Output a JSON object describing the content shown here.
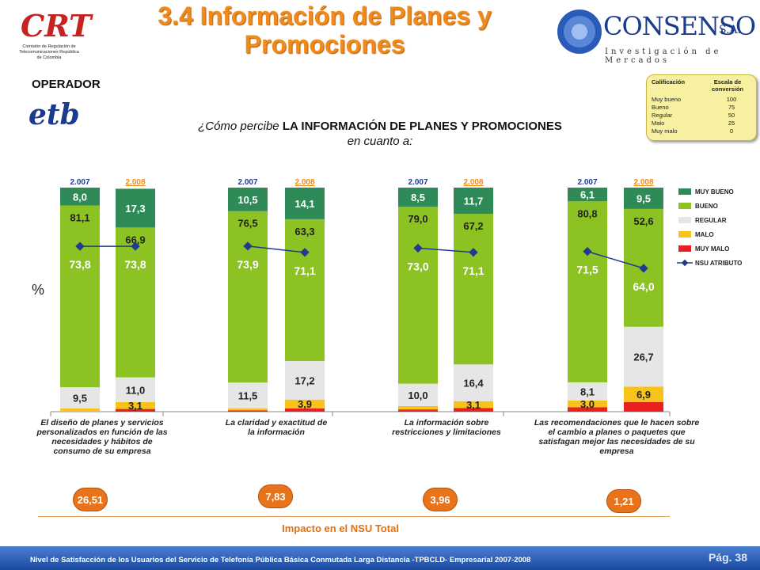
{
  "page": {
    "title": "3.4 Información de Planes y Promociones",
    "operator_label": "OPERADOR",
    "operator_name": "etb",
    "question_prefix": "¿Cómo percibe ",
    "question_bold": "LA INFORMACIÓN DE PLANES Y PROMOCIONES",
    "question_suffix": " en cuanto a:",
    "percent_label": "%",
    "impact_label": "Impacto en el NSU Total",
    "footer_text": "Nivel de Satisfacción de los Usuarios del Servicio de Telefonía Pública Básica Conmutada Larga Distancia -TPBCLD- Empresarial 2007-2008",
    "page_number": "Pág. 38"
  },
  "logos": {
    "crt_text": "CRT",
    "crt_sub": "Comisión de Regulación de Telecomunicaciones República de Colombia",
    "consenso_name": "CONSENSO",
    "consenso_sa": "S.A.",
    "consenso_tagline": "Investigación de Mercados"
  },
  "scale": {
    "header_left": "Calificación",
    "header_right": "Escala de conversión",
    "rows": [
      {
        "label": "Muy bueno",
        "value": "100"
      },
      {
        "label": "Bueno",
        "value": "75"
      },
      {
        "label": "Regular",
        "value": "50"
      },
      {
        "label": "Malo",
        "value": "25"
      },
      {
        "label": "Muy malo",
        "value": "0"
      }
    ]
  },
  "colors": {
    "muy_bueno": "#2e8b57",
    "bueno": "#8cc322",
    "regular": "#e6e6e6",
    "malo": "#f7c31a",
    "muy_malo": "#e8201e",
    "nsu": "#1f3a93",
    "accent": "#f08a1c"
  },
  "chart_data": {
    "type": "bar",
    "stacked": true,
    "ylim": [
      0,
      100
    ],
    "year_labels": [
      "2.007",
      "2.008"
    ],
    "legend": [
      "MUY BUENO",
      "BUENO",
      "REGULAR",
      "MALO",
      "MUY MALO",
      "NSU ATRIBUTO"
    ],
    "legend_position": "right",
    "groups": [
      {
        "category": "El diseño de planes y servicios personalizados en función de las necesidades y hábitos de consumo de su empresa",
        "impact": "26,51",
        "bars": [
          {
            "year": "2.007",
            "muy_malo": 0,
            "malo": 1.4,
            "regular": 9.5,
            "bueno": 81.1,
            "muy_bueno": 8.0,
            "nsu": 73.8,
            "labels": {
              "muy_bueno": "8,0",
              "bueno": "81,1",
              "regular": "9,5",
              "malo": "",
              "muy_malo": "",
              "nsu": "73,8"
            }
          },
          {
            "year": "2.008",
            "muy_malo": 1.2,
            "malo": 3.1,
            "regular": 11.0,
            "bueno": 66.9,
            "muy_bueno": 17.3,
            "nsu": 73.8,
            "labels": {
              "muy_bueno": "17,3",
              "bueno": "66,9",
              "regular": "11,0",
              "malo": "3,1",
              "muy_malo": "",
              "nsu": "73,8"
            }
          }
        ]
      },
      {
        "category": "La claridad y exactitud de la información",
        "impact": "7,83",
        "bars": [
          {
            "year": "2.007",
            "muy_malo": 0.6,
            "malo": 0.9,
            "regular": 11.5,
            "bueno": 76.5,
            "muy_bueno": 10.5,
            "nsu": 73.9,
            "labels": {
              "muy_bueno": "10,5",
              "bueno": "76,5",
              "regular": "11,5",
              "malo": "",
              "muy_malo": "",
              "nsu": "73,9"
            }
          },
          {
            "year": "2.008",
            "muy_malo": 1.5,
            "malo": 3.9,
            "regular": 17.2,
            "bueno": 63.3,
            "muy_bueno": 14.1,
            "nsu": 71.1,
            "labels": {
              "muy_bueno": "14,1",
              "bueno": "63,3",
              "regular": "17,2",
              "malo": "3,9",
              "muy_malo": "",
              "nsu": "71,1"
            }
          }
        ]
      },
      {
        "category": "La información sobre restricciones y limitaciones",
        "impact": "3,96",
        "bars": [
          {
            "year": "2.007",
            "muy_malo": 1.0,
            "malo": 1.5,
            "regular": 10.0,
            "bueno": 79.0,
            "muy_bueno": 8.5,
            "nsu": 73.0,
            "labels": {
              "muy_bueno": "8,5",
              "bueno": "79,0",
              "regular": "10,0",
              "malo": "",
              "muy_malo": "",
              "nsu": "73,0"
            }
          },
          {
            "year": "2.008",
            "muy_malo": 1.6,
            "malo": 3.1,
            "regular": 16.4,
            "bueno": 67.2,
            "muy_bueno": 11.7,
            "nsu": 71.1,
            "labels": {
              "muy_bueno": "11,7",
              "bueno": "67,2",
              "regular": "16,4",
              "malo": "3,1",
              "muy_malo": "",
              "nsu": "71,1"
            }
          }
        ]
      },
      {
        "category": "Las recomendaciones que le hacen sobre el cambio a planes o paquetes que satisfagan mejor las necesidades de su empresa",
        "impact": "1,21",
        "bars": [
          {
            "year": "2.007",
            "muy_malo": 2.0,
            "malo": 3.0,
            "regular": 8.1,
            "bueno": 80.8,
            "muy_bueno": 6.1,
            "nsu": 71.5,
            "labels": {
              "muy_bueno": "6,1",
              "bueno": "80,8",
              "regular": "8,1",
              "malo": "3,0",
              "muy_malo": "",
              "nsu": "71,5"
            }
          },
          {
            "year": "2.008",
            "muy_malo": 4.3,
            "malo": 6.9,
            "regular": 26.7,
            "bueno": 52.6,
            "muy_bueno": 9.5,
            "nsu": 64.0,
            "labels": {
              "muy_bueno": "9,5",
              "bueno": "52,6",
              "regular": "26,7",
              "malo": "6,9",
              "muy_malo": "",
              "nsu": "64,0"
            }
          }
        ]
      }
    ]
  }
}
